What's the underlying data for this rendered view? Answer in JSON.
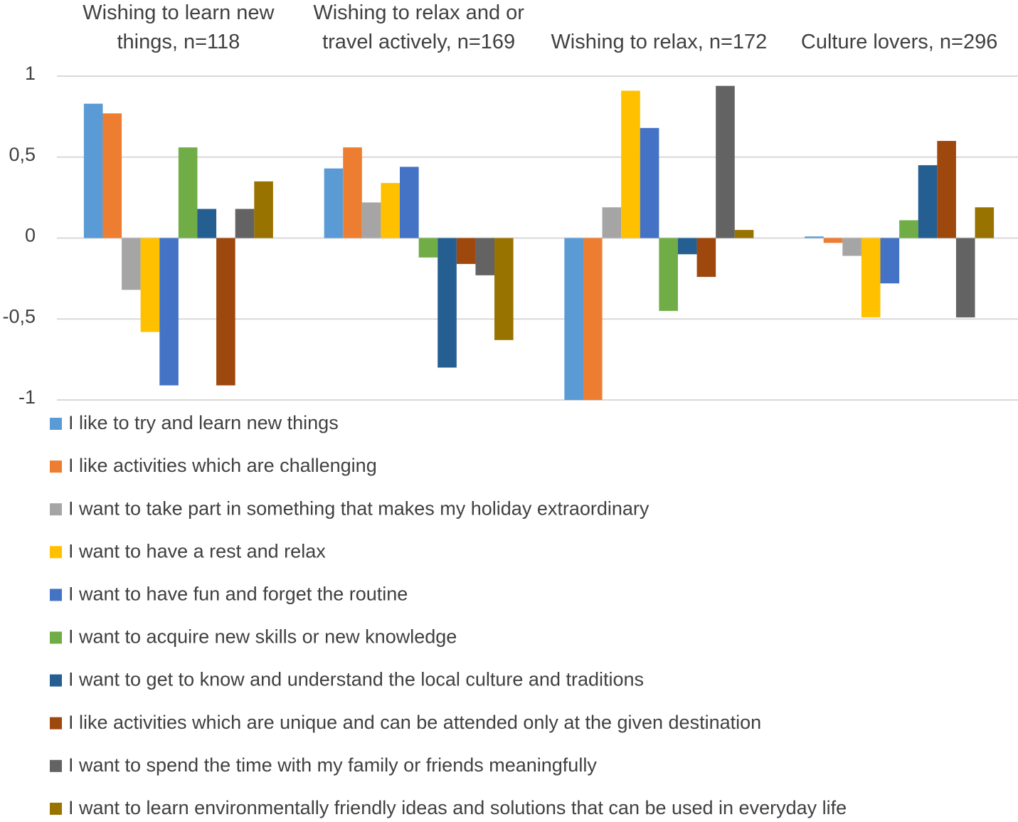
{
  "chart_data": {
    "type": "bar",
    "categories": [
      "Wishing to learn new things, n=118",
      "Wishing to relax and or travel actively, n=169",
      "Wishing to relax, n=172",
      "Culture lovers, n=296"
    ],
    "series": [
      {
        "name": "I like to try and learn new things",
        "color": "#5b9bd5",
        "values": [
          0.83,
          0.43,
          -1,
          0.01
        ]
      },
      {
        "name": "I like activities which are challenging",
        "color": "#ed7d31",
        "values": [
          0.77,
          0.56,
          -1,
          -0.03
        ]
      },
      {
        "name": "I want to take part in something that makes my holiday extraordinary",
        "color": "#a5a5a5",
        "values": [
          -0.32,
          0.22,
          0.19,
          -0.11
        ]
      },
      {
        "name": "I want to have a rest and relax",
        "color": "#ffc000",
        "values": [
          -0.58,
          0.34,
          0.91,
          -0.49
        ]
      },
      {
        "name": "I want to have fun and forget the routine",
        "color": "#4472c4",
        "values": [
          -0.91,
          0.44,
          0.68,
          -0.28
        ]
      },
      {
        "name": "I want to acquire new skills or new knowledge",
        "color": "#70ad47",
        "values": [
          0.56,
          -0.12,
          -0.45,
          0.11
        ]
      },
      {
        "name": "I want to get to know and understand the local culture and traditions",
        "color": "#255e91",
        "values": [
          0.18,
          -0.8,
          -0.1,
          0.45
        ]
      },
      {
        "name": "I like activities which are unique and can be attended only at the given destination",
        "color": "#9e480e",
        "values": [
          -0.91,
          -0.16,
          -0.24,
          0.6
        ]
      },
      {
        "name": "I want to spend the time with my family or friends meaningfully",
        "color": "#636363",
        "values": [
          0.18,
          -0.23,
          0.94,
          -0.49
        ]
      },
      {
        "name": "I want to learn environmentally friendly ideas and solutions that can be used in everyday life",
        "color": "#997300",
        "values": [
          0.35,
          -0.63,
          0.05,
          0.19
        ]
      }
    ],
    "ylim": [
      -1,
      1
    ],
    "yticks": [
      -1,
      {
        "value": -0.5,
        "label": "-0,5"
      },
      0,
      {
        "value": 0.5,
        "label": "0,5"
      },
      1
    ],
    "grid": true,
    "legend": "bottom"
  }
}
